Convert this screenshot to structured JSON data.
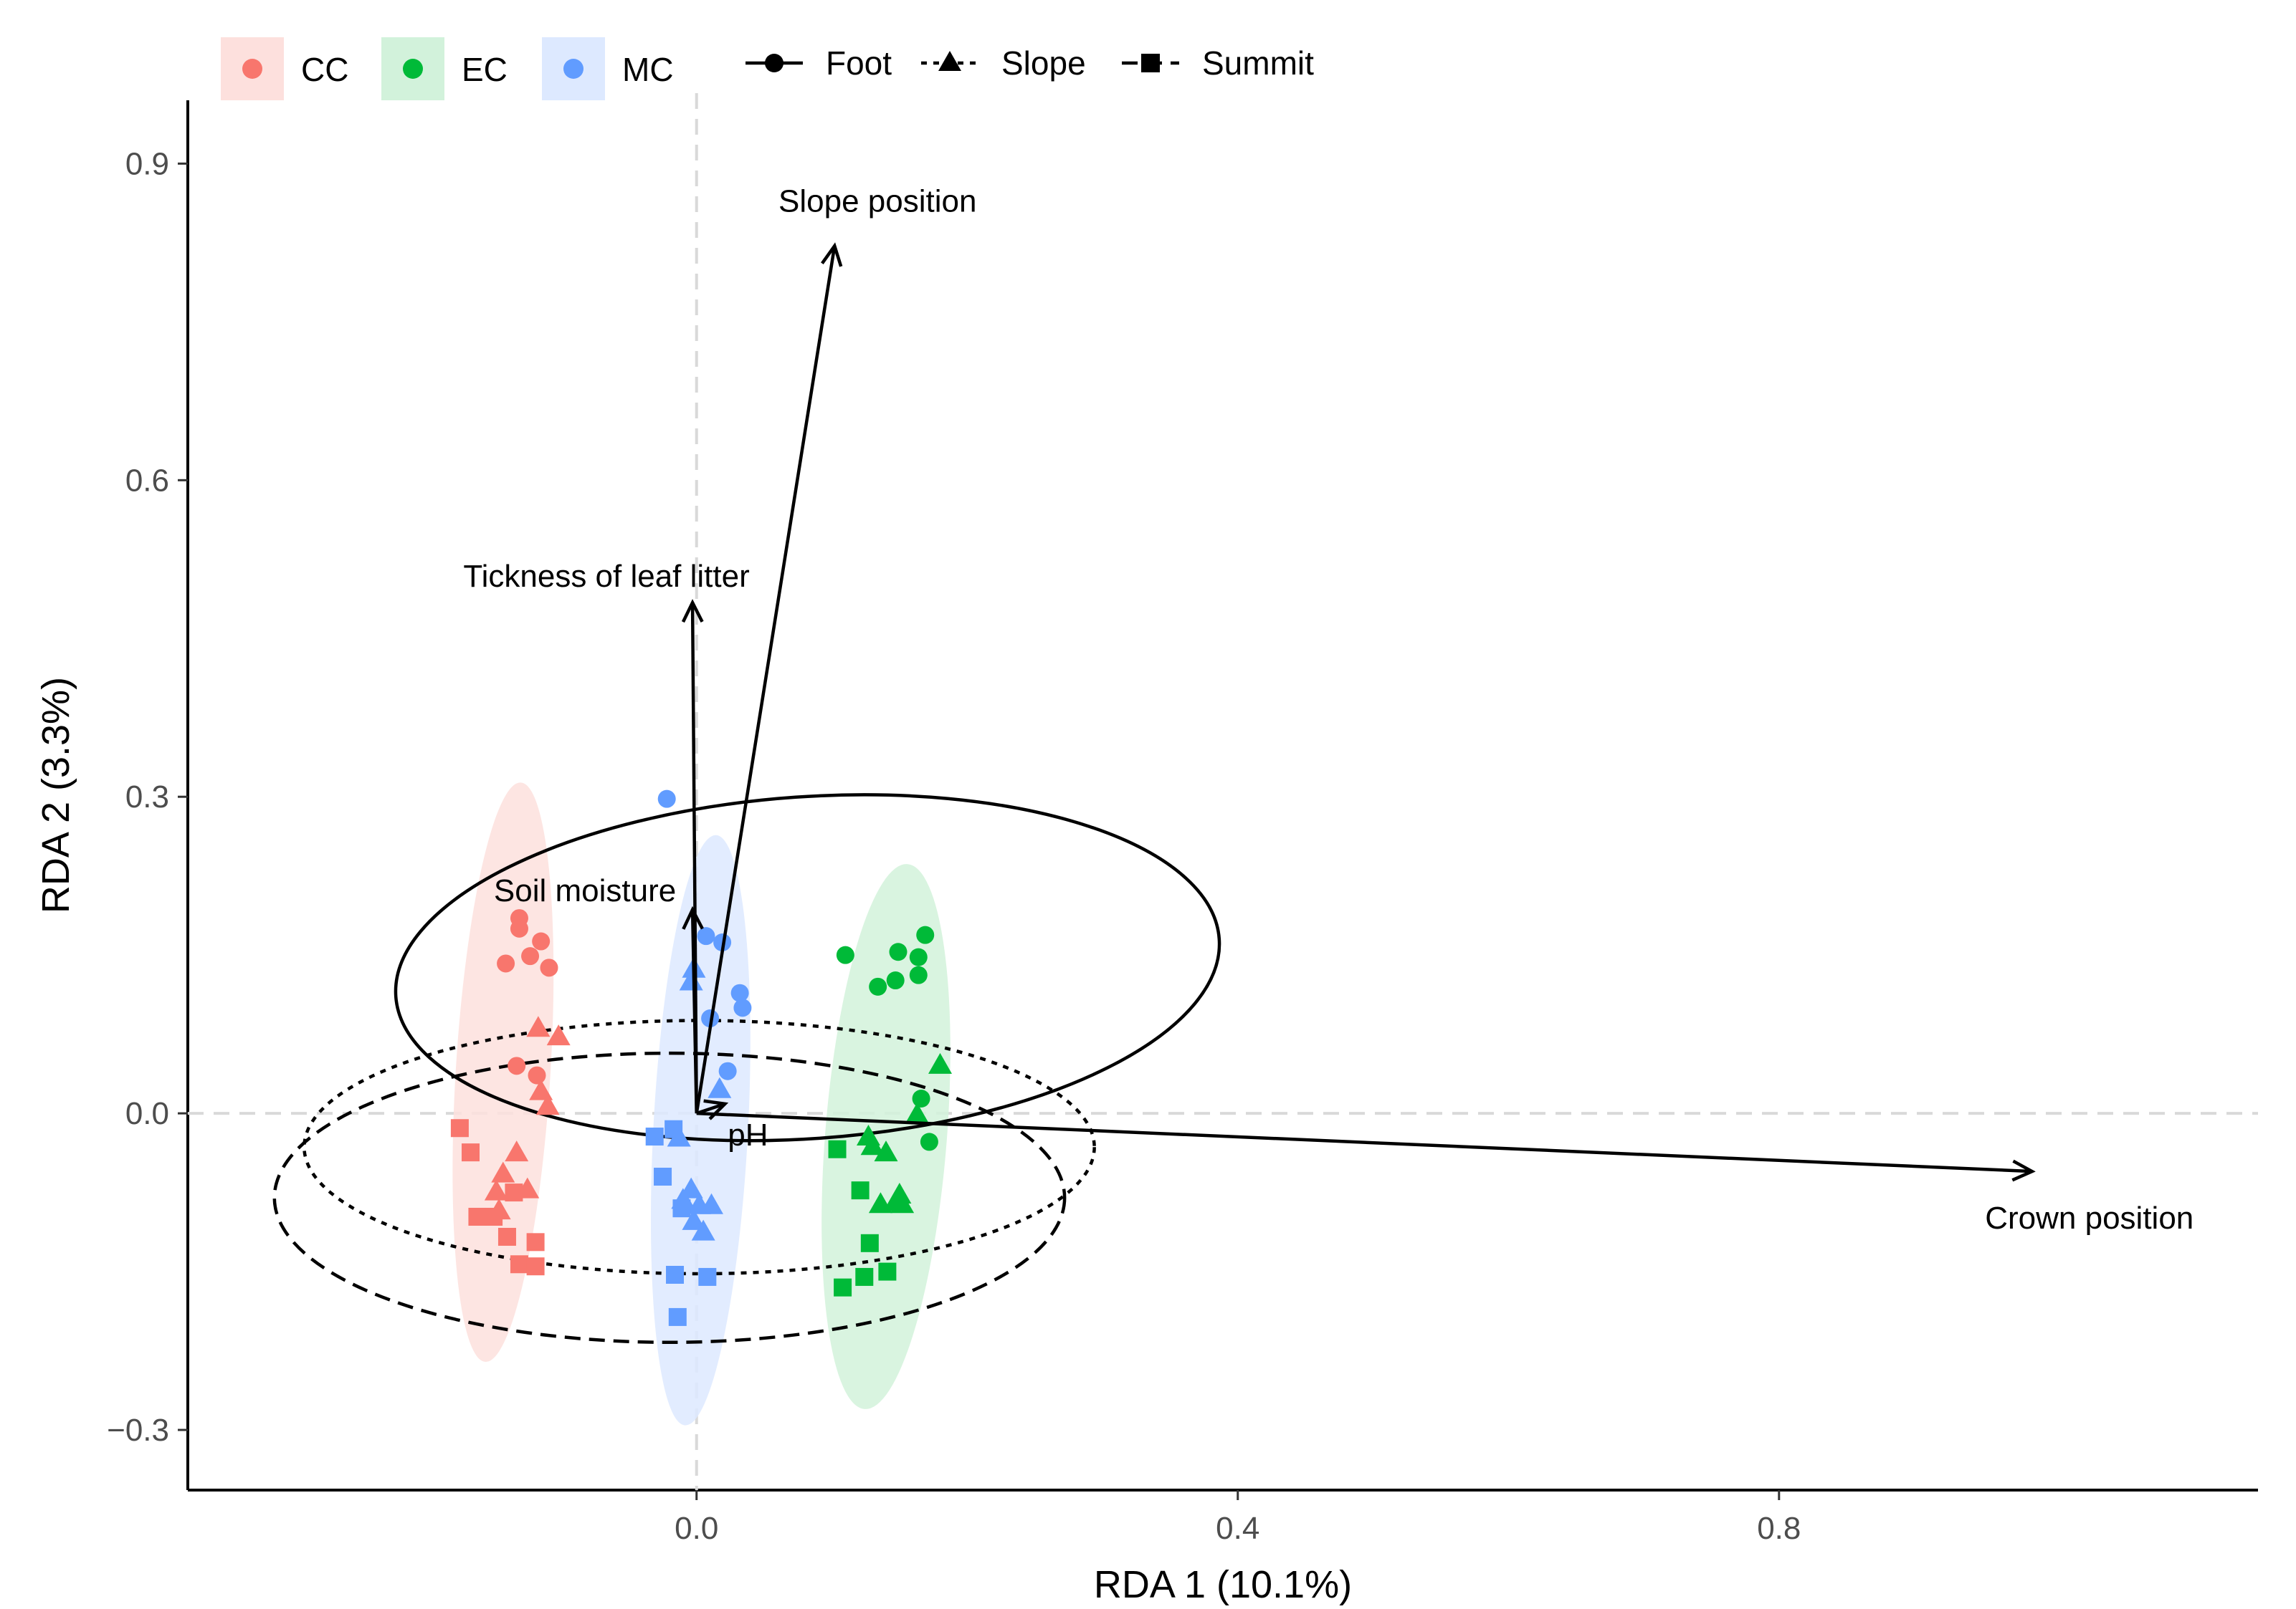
{
  "chart_data": {
    "type": "scatter",
    "subtype": "RDA ordination biplot",
    "title": "",
    "xlabel": "RDA 1 (10.1%)",
    "ylabel": "RDA 2 (3.3%)",
    "xlim": [
      -0.376,
      1.154
    ],
    "ylim": [
      -0.357,
      0.96
    ],
    "x_ticks": [
      0.0,
      0.4,
      0.8
    ],
    "x_tick_labels": [
      "0.0",
      "0.4",
      "0.8"
    ],
    "y_ticks": [
      -0.3,
      0.0,
      0.3,
      0.6,
      0.9
    ],
    "y_tick_labels": [
      "−0.3",
      "0.0",
      "0.3",
      "0.6",
      "0.9"
    ],
    "grid": false,
    "reference_lines": {
      "x": 0,
      "y": 0,
      "style": "dashed",
      "color": "#d9d9d9"
    },
    "legend": {
      "placement": "top-left",
      "groups": [
        {
          "name": "CC",
          "color": "#F8766D",
          "fill": "#fde0dd"
        },
        {
          "name": "EC",
          "color": "#00BA38",
          "fill": "#d2f2db"
        },
        {
          "name": "MC",
          "color": "#619CFF",
          "fill": "#dde9ff"
        }
      ],
      "positions": [
        {
          "name": "Foot",
          "shape": "circle",
          "line": "solid"
        },
        {
          "name": "Slope",
          "shape": "triangle",
          "line": "dotted"
        },
        {
          "name": "Summit",
          "shape": "square",
          "line": "dashed"
        }
      ]
    },
    "group_ellipses": [
      {
        "group": "CC",
        "cx": -0.143,
        "cy": 0.039,
        "rx": 0.035,
        "ry": 0.275,
        "angle": 3.5
      },
      {
        "group": "MC",
        "cx": 0.003,
        "cy": -0.016,
        "rx": 0.035,
        "ry": 0.28,
        "angle": 3.0
      },
      {
        "group": "EC",
        "cx": 0.14,
        "cy": -0.022,
        "rx": 0.045,
        "ry": 0.259,
        "angle": 4.5
      }
    ],
    "position_ellipses": [
      {
        "position": "Foot",
        "line": "solid",
        "cx": 0.082,
        "cy": 0.138,
        "rx": 0.305,
        "ry": 0.162,
        "angle": -4.0
      },
      {
        "position": "Slope",
        "line": "dotted",
        "cx": 0.002,
        "cy": -0.032,
        "rx": 0.292,
        "ry": 0.12,
        "angle": 0
      },
      {
        "position": "Summit",
        "line": "dashed",
        "cx": -0.02,
        "cy": -0.08,
        "rx": 0.292,
        "ry": 0.137,
        "angle": 0
      }
    ],
    "vectors": [
      {
        "label": "Slope position",
        "x": 0.102,
        "y": 0.822
      },
      {
        "label": "Tickness of leaf litter",
        "x": -0.003,
        "y": 0.484
      },
      {
        "label": "Soil moisture",
        "x": -0.003,
        "y": 0.193
      },
      {
        "label": "pH",
        "x": 0.021,
        "y": 0.009
      },
      {
        "label": "Crown position",
        "x": 0.987,
        "y": -0.055
      }
    ],
    "series": [
      {
        "name": "CC",
        "group": "CC",
        "points": [
          {
            "x": -0.131,
            "y": 0.185,
            "position": "Foot"
          },
          {
            "x": -0.131,
            "y": 0.175,
            "position": "Foot"
          },
          {
            "x": -0.115,
            "y": 0.163,
            "position": "Foot"
          },
          {
            "x": -0.123,
            "y": 0.149,
            "position": "Foot"
          },
          {
            "x": -0.141,
            "y": 0.142,
            "position": "Foot"
          },
          {
            "x": -0.109,
            "y": 0.138,
            "position": "Foot"
          },
          {
            "x": -0.133,
            "y": 0.045,
            "position": "Foot"
          },
          {
            "x": -0.118,
            "y": 0.036,
            "position": "Foot"
          },
          {
            "x": -0.117,
            "y": 0.08,
            "position": "Slope"
          },
          {
            "x": -0.102,
            "y": 0.072,
            "position": "Slope"
          },
          {
            "x": -0.115,
            "y": 0.02,
            "position": "Slope"
          },
          {
            "x": -0.11,
            "y": 0.006,
            "position": "Slope"
          },
          {
            "x": -0.133,
            "y": -0.038,
            "position": "Slope"
          },
          {
            "x": -0.143,
            "y": -0.058,
            "position": "Slope"
          },
          {
            "x": -0.125,
            "y": -0.073,
            "position": "Slope"
          },
          {
            "x": -0.148,
            "y": -0.075,
            "position": "Slope"
          },
          {
            "x": -0.146,
            "y": -0.093,
            "position": "Slope"
          },
          {
            "x": -0.175,
            "y": -0.014,
            "position": "Summit"
          },
          {
            "x": -0.167,
            "y": -0.037,
            "position": "Summit"
          },
          {
            "x": -0.135,
            "y": -0.075,
            "position": "Summit"
          },
          {
            "x": -0.162,
            "y": -0.098,
            "position": "Summit"
          },
          {
            "x": -0.15,
            "y": -0.098,
            "position": "Summit"
          },
          {
            "x": -0.14,
            "y": -0.117,
            "position": "Summit"
          },
          {
            "x": -0.119,
            "y": -0.122,
            "position": "Summit"
          },
          {
            "x": -0.131,
            "y": -0.143,
            "position": "Summit"
          },
          {
            "x": -0.119,
            "y": -0.145,
            "position": "Summit"
          }
        ]
      },
      {
        "name": "EC",
        "group": "EC",
        "points": [
          {
            "x": 0.11,
            "y": 0.15,
            "position": "Foot"
          },
          {
            "x": 0.169,
            "y": 0.169,
            "position": "Foot"
          },
          {
            "x": 0.149,
            "y": 0.153,
            "position": "Foot"
          },
          {
            "x": 0.164,
            "y": 0.148,
            "position": "Foot"
          },
          {
            "x": 0.147,
            "y": 0.126,
            "position": "Foot"
          },
          {
            "x": 0.164,
            "y": 0.131,
            "position": "Foot"
          },
          {
            "x": 0.134,
            "y": 0.12,
            "position": "Foot"
          },
          {
            "x": 0.166,
            "y": 0.014,
            "position": "Foot"
          },
          {
            "x": 0.172,
            "y": -0.027,
            "position": "Foot"
          },
          {
            "x": 0.18,
            "y": 0.045,
            "position": "Slope"
          },
          {
            "x": 0.163,
            "y": -0.002,
            "position": "Slope"
          },
          {
            "x": 0.127,
            "y": -0.023,
            "position": "Slope"
          },
          {
            "x": 0.13,
            "y": -0.032,
            "position": "Slope"
          },
          {
            "x": 0.14,
            "y": -0.038,
            "position": "Slope"
          },
          {
            "x": 0.15,
            "y": -0.078,
            "position": "Slope"
          },
          {
            "x": 0.136,
            "y": -0.087,
            "position": "Slope"
          },
          {
            "x": 0.147,
            "y": -0.085,
            "position": "Slope"
          },
          {
            "x": 0.152,
            "y": -0.087,
            "position": "Slope"
          },
          {
            "x": 0.104,
            "y": -0.034,
            "position": "Summit"
          },
          {
            "x": 0.121,
            "y": -0.073,
            "position": "Summit"
          },
          {
            "x": 0.128,
            "y": -0.123,
            "position": "Summit"
          },
          {
            "x": 0.141,
            "y": -0.15,
            "position": "Summit"
          },
          {
            "x": 0.124,
            "y": -0.155,
            "position": "Summit"
          },
          {
            "x": 0.108,
            "y": -0.165,
            "position": "Summit"
          }
        ]
      },
      {
        "name": "MC",
        "group": "MC",
        "points": [
          {
            "x": -0.022,
            "y": 0.298,
            "position": "Foot"
          },
          {
            "x": 0.007,
            "y": 0.168,
            "position": "Foot"
          },
          {
            "x": 0.019,
            "y": 0.162,
            "position": "Foot"
          },
          {
            "x": 0.032,
            "y": 0.114,
            "position": "Foot"
          },
          {
            "x": 0.034,
            "y": 0.1,
            "position": "Foot"
          },
          {
            "x": 0.01,
            "y": 0.09,
            "position": "Foot"
          },
          {
            "x": 0.023,
            "y": 0.04,
            "position": "Foot"
          },
          {
            "x": -0.002,
            "y": 0.136,
            "position": "Slope"
          },
          {
            "x": -0.004,
            "y": 0.124,
            "position": "Slope"
          },
          {
            "x": 0.017,
            "y": 0.022,
            "position": "Slope"
          },
          {
            "x": -0.013,
            "y": -0.024,
            "position": "Slope"
          },
          {
            "x": -0.004,
            "y": -0.073,
            "position": "Slope"
          },
          {
            "x": -0.01,
            "y": -0.083,
            "position": "Slope"
          },
          {
            "x": 0.002,
            "y": -0.088,
            "position": "Slope"
          },
          {
            "x": 0.011,
            "y": -0.088,
            "position": "Slope"
          },
          {
            "x": -0.002,
            "y": -0.103,
            "position": "Slope"
          },
          {
            "x": 0.005,
            "y": -0.113,
            "position": "Slope"
          },
          {
            "x": -0.031,
            "y": -0.022,
            "position": "Summit"
          },
          {
            "x": -0.017,
            "y": -0.015,
            "position": "Summit"
          },
          {
            "x": -0.025,
            "y": -0.06,
            "position": "Summit"
          },
          {
            "x": -0.011,
            "y": -0.09,
            "position": "Summit"
          },
          {
            "x": -0.016,
            "y": -0.153,
            "position": "Summit"
          },
          {
            "x": 0.008,
            "y": -0.155,
            "position": "Summit"
          },
          {
            "x": -0.014,
            "y": -0.193,
            "position": "Summit"
          }
        ]
      }
    ]
  }
}
